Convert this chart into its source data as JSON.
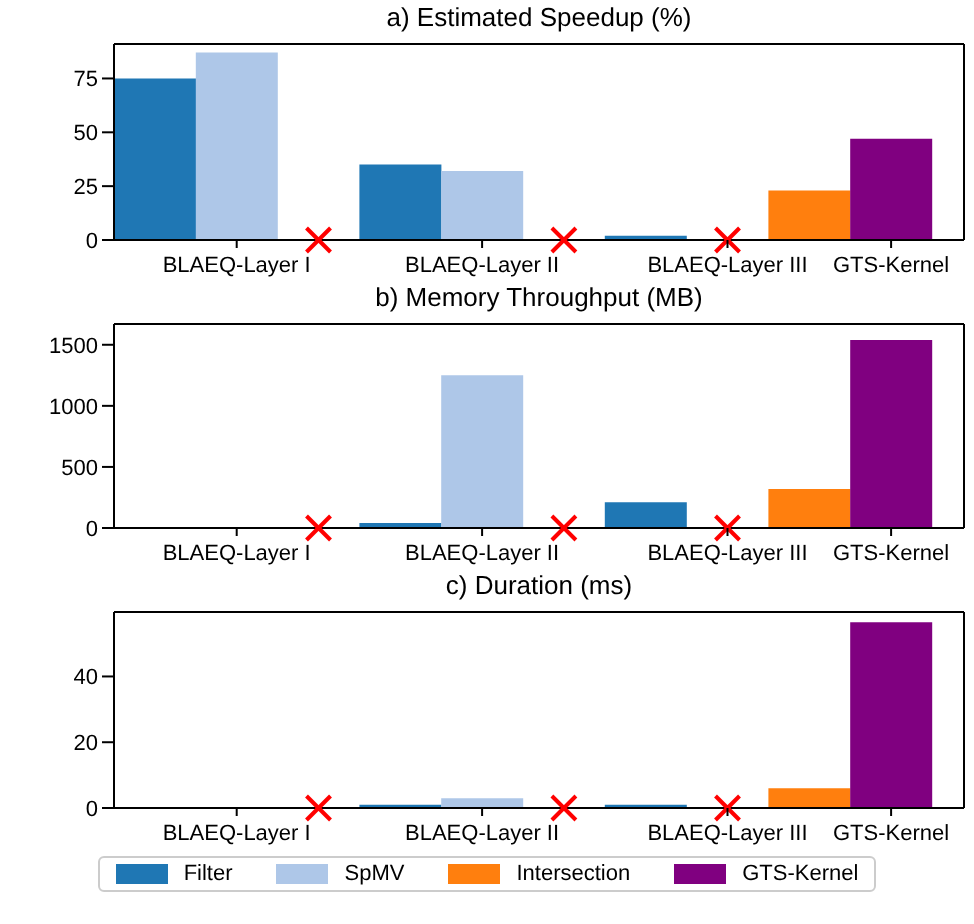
{
  "chart_data": [
    {
      "type": "bar",
      "title": "a) Estimated Speedup (%)",
      "categories": [
        "BLAEQ-Layer I",
        "BLAEQ-Layer II",
        "BLAEQ-Layer III",
        "GTS-Kernel"
      ],
      "ylim": [
        0,
        91
      ],
      "yticks": [
        0,
        25,
        50,
        75
      ],
      "series": [
        {
          "color": "#1f77b4",
          "values": [
            75,
            35,
            2,
            null
          ]
        },
        {
          "color": "#aec7e8",
          "values": [
            87,
            32,
            null,
            null
          ]
        },
        {
          "color": "#ff7f0e",
          "values": [
            null,
            null,
            23,
            null
          ]
        },
        {
          "color": "#800080",
          "values": [
            null,
            null,
            null,
            47
          ]
        },
        {
          "type": "scatter",
          "color": "#ff0000",
          "marker": "cross",
          "x": [
            "BLAEQ-Layer I",
            "BLAEQ-Layer II",
            "BLAEQ-Layer III"
          ],
          "values": [
            0,
            0,
            0
          ]
        }
      ]
    },
    {
      "type": "bar",
      "title": "b) Memory Throughput (MB)",
      "categories": [
        "BLAEQ-Layer I",
        "BLAEQ-Layer II",
        "BLAEQ-Layer III",
        "GTS-Kernel"
      ],
      "ylim": [
        0,
        1670
      ],
      "yticks": [
        0,
        500,
        1000,
        1500
      ],
      "series": [
        {
          "color": "#1f77b4",
          "values": [
            0,
            40,
            210,
            null
          ]
        },
        {
          "color": "#aec7e8",
          "values": [
            0,
            1250,
            null,
            null
          ]
        },
        {
          "color": "#ff7f0e",
          "values": [
            null,
            null,
            320,
            null
          ]
        },
        {
          "color": "#800080",
          "values": [
            null,
            null,
            null,
            1540
          ]
        },
        {
          "type": "scatter",
          "color": "#ff0000",
          "marker": "cross",
          "x": [
            "BLAEQ-Layer I",
            "BLAEQ-Layer II",
            "BLAEQ-Layer III"
          ],
          "values": [
            0,
            0,
            0
          ]
        }
      ]
    },
    {
      "type": "bar",
      "title": "c) Duration (ms)",
      "categories": [
        "BLAEQ-Layer I",
        "BLAEQ-Layer II",
        "BLAEQ-Layer III",
        "GTS-Kernel"
      ],
      "ylim": [
        0,
        59.6
      ],
      "yticks": [
        0,
        20,
        40
      ],
      "legend": "bottom",
      "series": [
        {
          "name": "Filter",
          "color": "#1f77b4",
          "values": [
            0,
            1,
            1,
            null
          ]
        },
        {
          "name": "SpMV",
          "color": "#aec7e8",
          "values": [
            0,
            3,
            null,
            null
          ]
        },
        {
          "name": "Intersection",
          "color": "#ff7f0e",
          "values": [
            null,
            null,
            6,
            null
          ]
        },
        {
          "name": "GTS-Kernel",
          "color": "#800080",
          "values": [
            null,
            null,
            null,
            56.5
          ]
        },
        {
          "type": "scatter",
          "color": "#ff0000",
          "marker": "cross",
          "x": [
            "BLAEQ-Layer I",
            "BLAEQ-Layer II",
            "BLAEQ-Layer III"
          ],
          "values": [
            0,
            0,
            0
          ]
        }
      ]
    }
  ]
}
